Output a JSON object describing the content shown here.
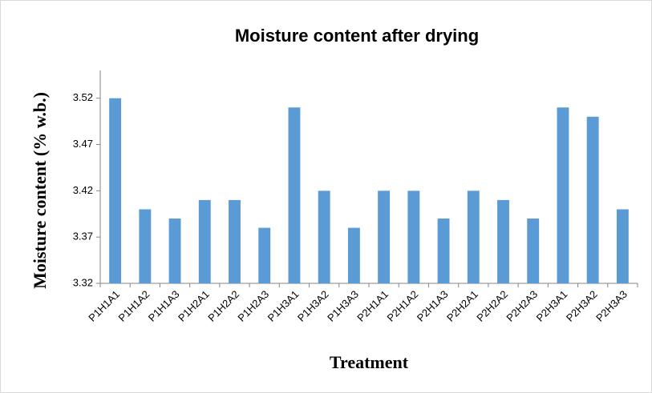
{
  "chart_data": {
    "type": "bar",
    "title": "Moisture content after drying",
    "x_label": "Treatment",
    "y_label": "Moisture content (% w.b.)",
    "categories": [
      "P1H1A1",
      "P1H1A2",
      "P1H1A3",
      "P1H2A1",
      "P1H2A2",
      "P1H2A3",
      "P1H3A1",
      "P1H3A2",
      "P1H3A3",
      "P2H1A1",
      "P2H1A2",
      "P2H1A3",
      "P2H2A1",
      "P2H2A2",
      "P2H2A3",
      "P2H3A1",
      "P2H3A2",
      "P2H3A3"
    ],
    "values": [
      3.52,
      3.4,
      3.39,
      3.41,
      3.41,
      3.38,
      3.51,
      3.42,
      3.38,
      3.42,
      3.42,
      3.39,
      3.42,
      3.41,
      3.39,
      3.51,
      3.5,
      3.4
    ],
    "color": "#5b9bd5",
    "ylim": [
      3.32,
      3.55
    ],
    "yticks": [
      3.32,
      3.37,
      3.42,
      3.47,
      3.52
    ],
    "grid": false
  }
}
